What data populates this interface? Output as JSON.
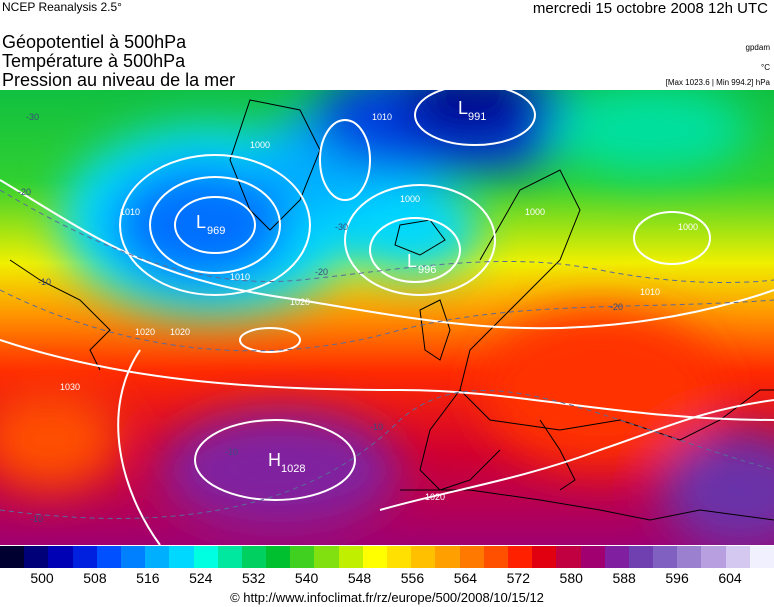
{
  "header": {
    "source": "NCEP Reanalysis 2.5°",
    "datetime": "mercredi 15 octobre 2008 12h UTC",
    "titles": [
      "Géopotentiel à 500hPa",
      "Température à 500hPa",
      "Pression au niveau de la mer"
    ],
    "units": [
      "gpdam",
      "°C",
      "[Max 1023.6 | Min 994.2] hPa"
    ]
  },
  "map": {
    "pressure_centers": [
      {
        "type": "L",
        "value": "969"
      },
      {
        "type": "L",
        "value": "991"
      },
      {
        "type": "L",
        "value": "996"
      },
      {
        "type": "H",
        "value": "1028"
      }
    ],
    "isobar_labels": [
      "1000",
      "1010",
      "1020",
      "1030",
      "1000",
      "1010",
      "1020",
      "1000",
      "1010",
      "1020",
      "1020",
      "1010",
      "1000"
    ],
    "temperature_labels": [
      "-30",
      "-20",
      "-10",
      "-30",
      "-20",
      "-10",
      "-20",
      "-10",
      "-10"
    ]
  },
  "colorbar": {
    "ticks": [
      "500",
      "508",
      "516",
      "524",
      "532",
      "540",
      "548",
      "556",
      "564",
      "572",
      "580",
      "588",
      "596",
      "604"
    ],
    "colors": [
      "#000030",
      "#000078",
      "#0000b4",
      "#0020e0",
      "#0050ff",
      "#0080ff",
      "#00b0ff",
      "#00d8ff",
      "#00ffe0",
      "#00e8a0",
      "#00d060",
      "#00c030",
      "#40d020",
      "#80e010",
      "#c0f000",
      "#ffff00",
      "#ffe000",
      "#ffc000",
      "#ffa000",
      "#ff7800",
      "#ff5000",
      "#ff2000",
      "#e00010",
      "#c00040",
      "#a00070",
      "#8020a0",
      "#7040b0",
      "#8060c0",
      "#9c80d0",
      "#b8a0e0",
      "#d4c8f0",
      "#f0f0ff"
    ]
  },
  "credit": "© http://www.infoclimat.fr/rz/europe/500/2008/10/15/12"
}
